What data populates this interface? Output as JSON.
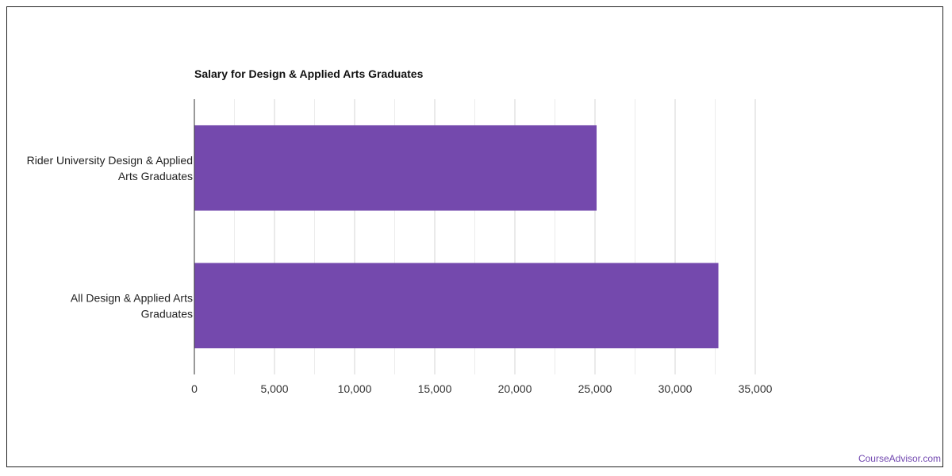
{
  "chart_data": {
    "type": "bar",
    "orientation": "horizontal",
    "title": "Salary for Design & Applied Arts Graduates",
    "categories": [
      [
        "Rider University Design & Applied",
        "Arts Graduates"
      ],
      [
        "All Design & Applied Arts",
        "Graduates"
      ]
    ],
    "values": [
      25100,
      32700
    ],
    "xlim": [
      0,
      35000
    ],
    "xticks": [
      0,
      5000,
      10000,
      15000,
      20000,
      25000,
      30000,
      35000
    ],
    "xtick_labels": [
      "0",
      "5,000",
      "10,000",
      "15,000",
      "20,000",
      "25,000",
      "30,000",
      "35,000"
    ],
    "bar_color": "#7449ad",
    "grid": true
  },
  "footer": {
    "brand": "CourseAdvisor.com",
    "color": "#7248b0"
  }
}
